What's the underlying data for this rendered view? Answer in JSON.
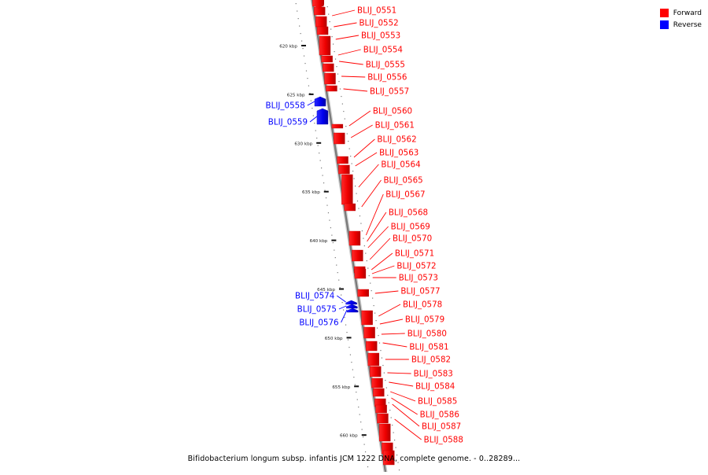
{
  "legend": {
    "forward_label": "Forward",
    "reverse_label": "Reverse",
    "forward_color": "#ff0000",
    "reverse_color": "#0000ff"
  },
  "caption": "Bifidobacterium longum subsp. infantis JCM 1222 DNA, complete genome. - 0..28289...",
  "axis": {
    "ticks": [
      "620 kbp",
      "625 kbp",
      "630 kbp",
      "635 kbp",
      "640 kbp",
      "645 kbp",
      "650 kbp",
      "655 kbp",
      "660 kbp"
    ]
  },
  "genes": [
    {
      "name": "BLIJ_0551",
      "strand": "forward"
    },
    {
      "name": "BLIJ_0552",
      "strand": "forward"
    },
    {
      "name": "BLIJ_0553",
      "strand": "forward"
    },
    {
      "name": "BLIJ_0554",
      "strand": "forward"
    },
    {
      "name": "BLIJ_0555",
      "strand": "forward"
    },
    {
      "name": "BLIJ_0556",
      "strand": "forward"
    },
    {
      "name": "BLIJ_0557",
      "strand": "forward"
    },
    {
      "name": "BLIJ_0558",
      "strand": "reverse"
    },
    {
      "name": "BLIJ_0559",
      "strand": "reverse"
    },
    {
      "name": "BLIJ_0560",
      "strand": "forward"
    },
    {
      "name": "BLIJ_0561",
      "strand": "forward"
    },
    {
      "name": "BLIJ_0562",
      "strand": "forward"
    },
    {
      "name": "BLIJ_0563",
      "strand": "forward"
    },
    {
      "name": "BLIJ_0564",
      "strand": "forward"
    },
    {
      "name": "BLIJ_0565",
      "strand": "forward"
    },
    {
      "name": "BLIJ_0567",
      "strand": "forward"
    },
    {
      "name": "BLIJ_0568",
      "strand": "forward"
    },
    {
      "name": "BLIJ_0569",
      "strand": "forward"
    },
    {
      "name": "BLIJ_0570",
      "strand": "forward"
    },
    {
      "name": "BLIJ_0571",
      "strand": "forward"
    },
    {
      "name": "BLIJ_0572",
      "strand": "forward"
    },
    {
      "name": "BLIJ_0573",
      "strand": "forward"
    },
    {
      "name": "BLIJ_0574",
      "strand": "reverse"
    },
    {
      "name": "BLIJ_0575",
      "strand": "reverse"
    },
    {
      "name": "BLIJ_0576",
      "strand": "reverse"
    },
    {
      "name": "BLIJ_0577",
      "strand": "forward"
    },
    {
      "name": "BLIJ_0578",
      "strand": "forward"
    },
    {
      "name": "BLIJ_0579",
      "strand": "forward"
    },
    {
      "name": "BLIJ_0580",
      "strand": "forward"
    },
    {
      "name": "BLIJ_0581",
      "strand": "forward"
    },
    {
      "name": "BLIJ_0582",
      "strand": "forward"
    },
    {
      "name": "BLIJ_0583",
      "strand": "forward"
    },
    {
      "name": "BLIJ_0584",
      "strand": "forward"
    },
    {
      "name": "BLIJ_0585",
      "strand": "forward"
    },
    {
      "name": "BLIJ_0586",
      "strand": "forward"
    },
    {
      "name": "BLIJ_0587",
      "strand": "forward"
    },
    {
      "name": "BLIJ_0588",
      "strand": "forward"
    }
  ]
}
